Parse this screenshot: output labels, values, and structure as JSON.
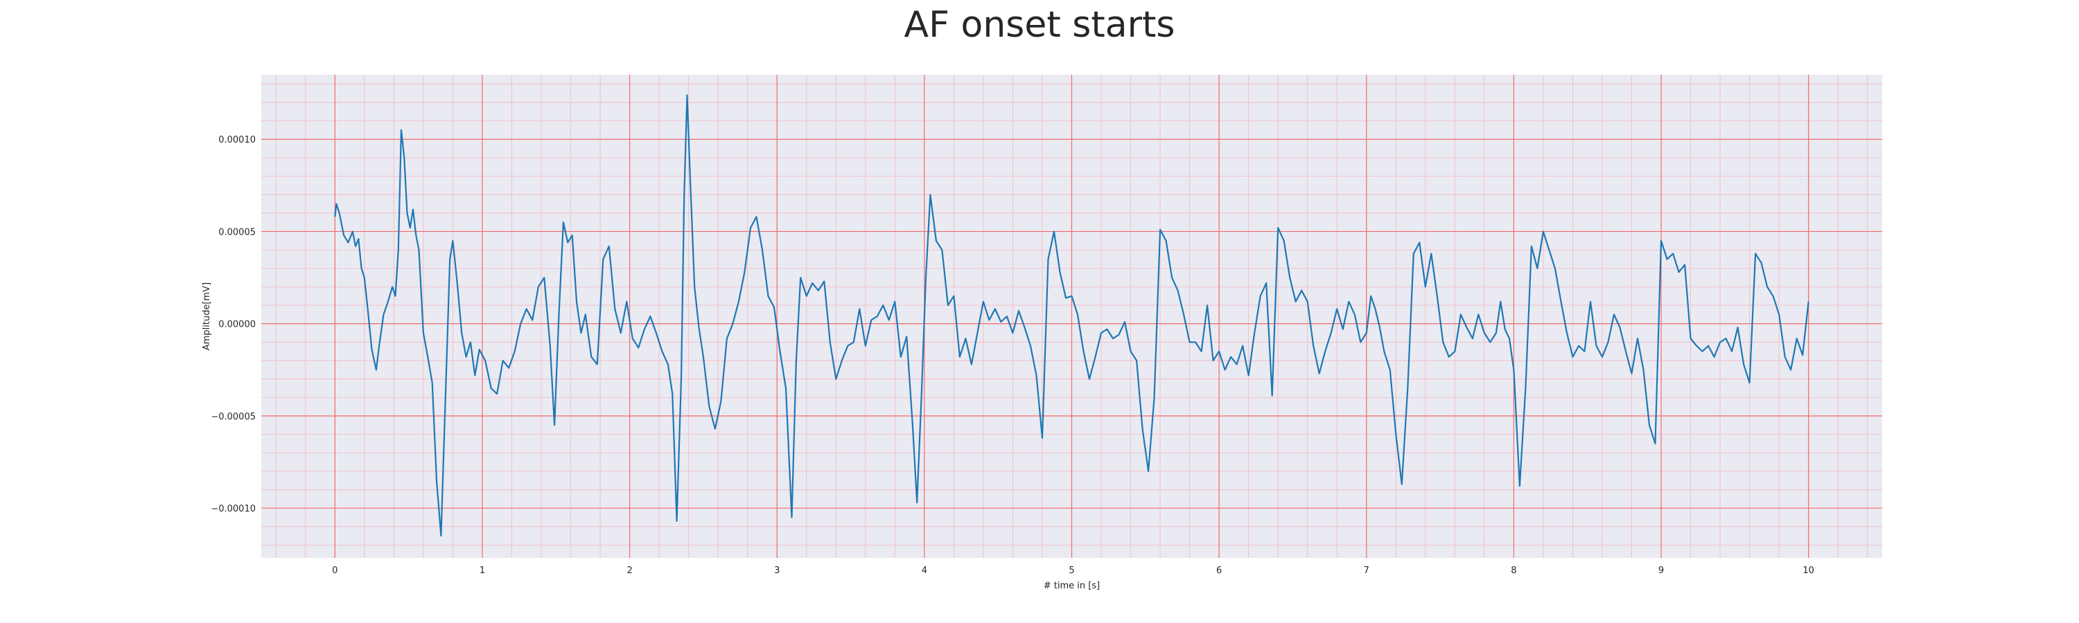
{
  "chart_data": {
    "type": "line",
    "title": "AF onset starts",
    "xlabel": "# time in [s]",
    "ylabel": "Amplitude[mV]",
    "xlim": [
      -0.5,
      10.5
    ],
    "ylim": [
      -0.000127,
      0.000135
    ],
    "xticks": [
      0,
      1,
      2,
      3,
      4,
      5,
      6,
      7,
      8,
      9,
      10
    ],
    "xtick_labels": [
      "0",
      "1",
      "2",
      "3",
      "4",
      "5",
      "6",
      "7",
      "8",
      "9",
      "10"
    ],
    "yticks": [
      -0.0001,
      -5e-05,
      0,
      5e-05,
      0.0001
    ],
    "ytick_labels": [
      "−0.00010",
      "−0.00005",
      "0.00000",
      "0.00005",
      "0.00010"
    ],
    "grid": true,
    "colors": {
      "line": "#1f77b4",
      "plot_bg": "#eaeaf2",
      "major_grid": "#f26b6b",
      "minor_grid": "#f4b6bf"
    },
    "series": [
      {
        "x": [
          0,
          0.01,
          0.03,
          0.06,
          0.09,
          0.12,
          0.14,
          0.16,
          0.18,
          0.2,
          0.22,
          0.25,
          0.28,
          0.3,
          0.33,
          0.36,
          0.39,
          0.41,
          0.43,
          0.45,
          0.47,
          0.49,
          0.51,
          0.53,
          0.55,
          0.57,
          0.6,
          0.63,
          0.66,
          0.69,
          0.72,
          0.75,
          0.78,
          0.8,
          0.83,
          0.86,
          0.89,
          0.92,
          0.95,
          0.98,
          1.02,
          1.06,
          1.1,
          1.14,
          1.18,
          1.22,
          1.26,
          1.3,
          1.34,
          1.38,
          1.42,
          1.46,
          1.49,
          1.52,
          1.55,
          1.58,
          1.61,
          1.64,
          1.67,
          1.7,
          1.74,
          1.78,
          1.82,
          1.86,
          1.9,
          1.94,
          1.98,
          2.02,
          2.06,
          2.1,
          2.14,
          2.18,
          2.22,
          2.26,
          2.29,
          2.32,
          2.35,
          2.37,
          2.39,
          2.41,
          2.44,
          2.47,
          2.5,
          2.54,
          2.58,
          2.62,
          2.66,
          2.7,
          2.74,
          2.78,
          2.82,
          2.86,
          2.9,
          2.94,
          2.98,
          3.02,
          3.06,
          3.1,
          3.13,
          3.16,
          3.2,
          3.24,
          3.28,
          3.32,
          3.36,
          3.4,
          3.44,
          3.48,
          3.52,
          3.56,
          3.6,
          3.64,
          3.68,
          3.72,
          3.76,
          3.8,
          3.84,
          3.88,
          3.92,
          3.95,
          3.98,
          4.01,
          4.04,
          4.08,
          4.12,
          4.16,
          4.2,
          4.24,
          4.28,
          4.32,
          4.36,
          4.4,
          4.44,
          4.48,
          4.52,
          4.56,
          4.6,
          4.64,
          4.68,
          4.72,
          4.76,
          4.8,
          4.84,
          4.88,
          4.92,
          4.96,
          5.0,
          5.04,
          5.08,
          5.12,
          5.16,
          5.2,
          5.24,
          5.28,
          5.32,
          5.36,
          5.4,
          5.44,
          5.48,
          5.52,
          5.56,
          5.6,
          5.64,
          5.68,
          5.72,
          5.76,
          5.8,
          5.84,
          5.88,
          5.92,
          5.96,
          6.0,
          6.04,
          6.08,
          6.12,
          6.16,
          6.2,
          6.24,
          6.28,
          6.32,
          6.36,
          6.4,
          6.44,
          6.48,
          6.52,
          6.56,
          6.6,
          6.64,
          6.68,
          6.72,
          6.76,
          6.8,
          6.84,
          6.88,
          6.92,
          6.96,
          7.0,
          7.03,
          7.06,
          7.09,
          7.12,
          7.16,
          7.2,
          7.24,
          7.28,
          7.32,
          7.36,
          7.4,
          7.44,
          7.48,
          7.52,
          7.56,
          7.6,
          7.64,
          7.68,
          7.72,
          7.76,
          7.8,
          7.84,
          7.88,
          7.91,
          7.94,
          7.97,
          8.0,
          8.04,
          8.08,
          8.12,
          8.16,
          8.2,
          8.24,
          8.28,
          8.32,
          8.36,
          8.4,
          8.44,
          8.48,
          8.52,
          8.56,
          8.6,
          8.64,
          8.68,
          8.72,
          8.76,
          8.8,
          8.84,
          8.88,
          8.92,
          8.96,
          9.0,
          9.04,
          9.08,
          9.12,
          9.16,
          9.2,
          9.24,
          9.28,
          9.32,
          9.36,
          9.4,
          9.44,
          9.48,
          9.52,
          9.56,
          9.6,
          9.64,
          9.68,
          9.72,
          9.76,
          9.8,
          9.84,
          9.88,
          9.92,
          9.96,
          10.0
        ],
        "y": [
          5.8e-05,
          6.5e-05,
          6e-05,
          4.8e-05,
          4.4e-05,
          5e-05,
          4.2e-05,
          4.6e-05,
          3e-05,
          2.5e-05,
          1e-05,
          -1.4e-05,
          -2.5e-05,
          -1.2e-05,
          5e-06,
          1.2e-05,
          2e-05,
          1.5e-05,
          4e-05,
          0.000105,
          9e-05,
          6e-05,
          5.2e-05,
          6.2e-05,
          4.8e-05,
          4e-05,
          -5e-06,
          -1.8e-05,
          -3.2e-05,
          -8.5e-05,
          -0.000115,
          -4e-05,
          3.5e-05,
          4.5e-05,
          2.2e-05,
          -5e-06,
          -1.8e-05,
          -1e-05,
          -2.8e-05,
          -1.4e-05,
          -2e-05,
          -3.5e-05,
          -3.8e-05,
          -2e-05,
          -2.4e-05,
          -1.5e-05,
          0.0,
          8e-06,
          2e-06,
          2e-05,
          2.5e-05,
          -1.2e-05,
          -5.5e-05,
          5e-06,
          5.5e-05,
          4.4e-05,
          4.8e-05,
          1.2e-05,
          -5e-06,
          5e-06,
          -1.8e-05,
          -2.2e-05,
          3.5e-05,
          4.2e-05,
          8e-06,
          -5e-06,
          1.2e-05,
          -8e-06,
          -1.3e-05,
          -3e-06,
          4e-06,
          -5e-06,
          -1.5e-05,
          -2.2e-05,
          -3.8e-05,
          -0.000107,
          -3e-05,
          7e-05,
          0.000124,
          8e-05,
          2e-05,
          -2e-06,
          -1.8e-05,
          -4.5e-05,
          -5.7e-05,
          -4.2e-05,
          -8e-06,
          0.0,
          1.2e-05,
          2.8e-05,
          5.2e-05,
          5.8e-05,
          4e-05,
          1.5e-05,
          9e-06,
          -1.5e-05,
          -3.5e-05,
          -0.000105,
          -2e-05,
          2.5e-05,
          1.5e-05,
          2.2e-05,
          1.8e-05,
          2.3e-05,
          -1e-05,
          -3e-05,
          -2e-05,
          -1.2e-05,
          -1e-05,
          8e-06,
          -1.2e-05,
          2e-06,
          4e-06,
          1e-05,
          2e-06,
          1.2e-05,
          -1.8e-05,
          -7e-06,
          -5.5e-05,
          -9.7e-05,
          -4e-05,
          2.5e-05,
          7e-05,
          4.5e-05,
          4e-05,
          1e-05,
          1.5e-05,
          -1.8e-05,
          -8e-06,
          -2.2e-05,
          -5e-06,
          1.2e-05,
          2e-06,
          8e-06,
          1e-06,
          4e-06,
          -5e-06,
          7e-06,
          -2e-06,
          -1.2e-05,
          -2.8e-05,
          -6.2e-05,
          3.5e-05,
          5e-05,
          2.8e-05,
          1.4e-05,
          1.5e-05,
          5e-06,
          -1.5e-05,
          -3e-05,
          -1.8e-05,
          -5e-06,
          -3e-06,
          -8e-06,
          -6e-06,
          1e-06,
          -1.5e-05,
          -2e-05,
          -5.7e-05,
          -8e-05,
          -4e-05,
          5.1e-05,
          4.5e-05,
          2.5e-05,
          1.8e-05,
          5e-06,
          -1e-05,
          -1e-05,
          -1.5e-05,
          1e-05,
          -2e-05,
          -1.5e-05,
          -2.5e-05,
          -1.8e-05,
          -2.2e-05,
          -1.2e-05,
          -2.8e-05,
          -5e-06,
          1.5e-05,
          2.2e-05,
          -3.9e-05,
          5.2e-05,
          4.5e-05,
          2.5e-05,
          1.2e-05,
          1.8e-05,
          1.2e-05,
          -1.2e-05,
          -2.7e-05,
          -1.5e-05,
          -5e-06,
          8e-06,
          -3e-06,
          1.2e-05,
          5e-06,
          -1e-05,
          -5e-06,
          1.5e-05,
          8e-06,
          -2e-06,
          -1.5e-05,
          -2.5e-05,
          -6e-05,
          -8.7e-05,
          -3.5e-05,
          3.8e-05,
          4.4e-05,
          2e-05,
          3.8e-05,
          1.5e-05,
          -1e-05,
          -1.8e-05,
          -1.5e-05,
          5e-06,
          -2e-06,
          -8e-06,
          5e-06,
          -5e-06,
          -1e-05,
          -5e-06,
          1.2e-05,
          -3e-06,
          -8e-06,
          -2.5e-05,
          -8.8e-05,
          -3.5e-05,
          4.2e-05,
          3e-05,
          5e-05,
          4e-05,
          3e-05,
          1.2e-05,
          -5e-06,
          -1.8e-05,
          -1.2e-05,
          -1.5e-05,
          1.2e-05,
          -1.2e-05,
          -1.8e-05,
          -1e-05,
          5e-06,
          -2e-06,
          -1.5e-05,
          -2.7e-05,
          -8e-06,
          -2.5e-05,
          -5.5e-05,
          -6.5e-05,
          4.5e-05,
          3.5e-05,
          3.8e-05,
          2.8e-05,
          3.2e-05,
          -8e-06,
          -1.2e-05,
          -1.5e-05,
          -1.2e-05,
          -1.8e-05,
          -1e-05,
          -8e-06,
          -1.5e-05,
          -2e-06,
          -2.2e-05,
          -3.2e-05,
          3.8e-05,
          3.3e-05,
          2e-05,
          1.5e-05,
          5e-06,
          -1.8e-05,
          -2.5e-05,
          -8e-06,
          -1.7e-05,
          1.2e-05
        ]
      }
    ]
  }
}
